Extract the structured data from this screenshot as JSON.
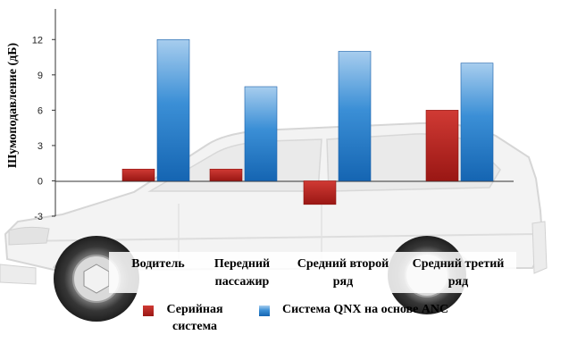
{
  "chart_data": {
    "type": "bar",
    "categories": [
      [
        "Водитель"
      ],
      [
        "Передний",
        "пассажир"
      ],
      [
        "Средний второй",
        "ряд"
      ],
      [
        "Средний третий",
        "ряд"
      ]
    ],
    "series": [
      {
        "name": [
          "Серийная",
          "система"
        ],
        "color": "#b5201e",
        "values": [
          1,
          1,
          -2,
          6
        ]
      },
      {
        "name": [
          "Система QNX на основе ANC"
        ],
        "color": "#1a74c4",
        "values": [
          12,
          8,
          11,
          10
        ]
      }
    ],
    "ylabel": "Шумоподавление (дБ)",
    "yticks": [
      -3,
      0,
      3,
      6,
      9,
      12
    ],
    "ylim": [
      -3,
      14.6
    ],
    "grid": false,
    "legend_position": "bottom"
  }
}
